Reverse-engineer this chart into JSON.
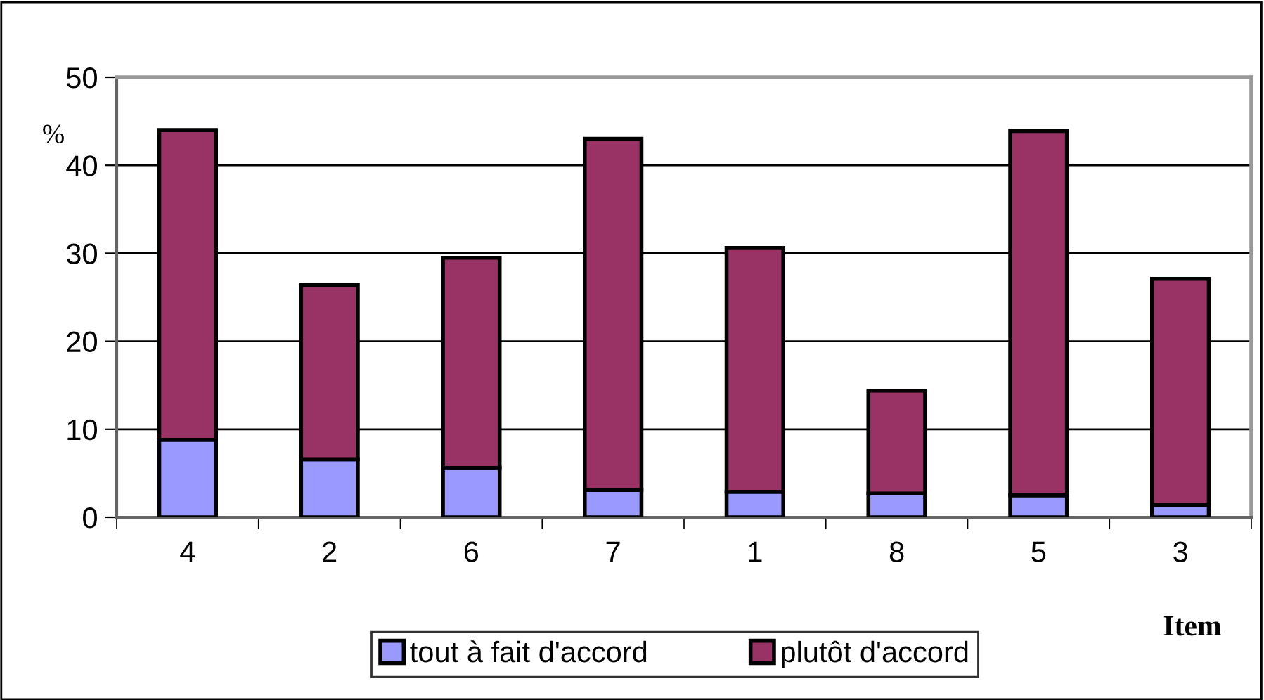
{
  "chart_data": {
    "type": "bar",
    "stacked": true,
    "xlabel": "Item",
    "ylabel": "%",
    "categories": [
      "4",
      "2",
      "6",
      "7",
      "1",
      "8",
      "5",
      "3"
    ],
    "series": [
      {
        "name": "tout à fait d'accord",
        "color": "#9999ff",
        "values": [
          8.8,
          6.6,
          5.6,
          3.1,
          2.9,
          2.7,
          2.5,
          1.4
        ]
      },
      {
        "name": "plutôt d'accord",
        "color": "#993366",
        "values": [
          35.2,
          19.8,
          23.9,
          39.9,
          27.7,
          11.7,
          41.4,
          25.7
        ]
      }
    ],
    "ylim": [
      0,
      50
    ],
    "yticks": [
      0,
      10,
      20,
      30,
      40,
      50
    ],
    "grid": "y",
    "legend": "bottom"
  }
}
